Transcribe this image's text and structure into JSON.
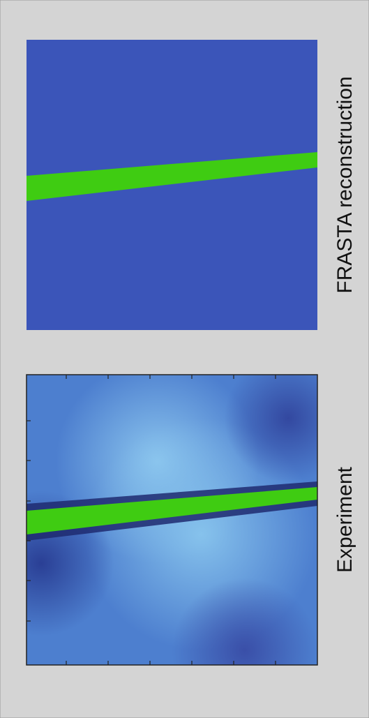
{
  "panels": [
    {
      "label": "FRASTA reconstruction"
    },
    {
      "label": "Experiment"
    }
  ]
}
